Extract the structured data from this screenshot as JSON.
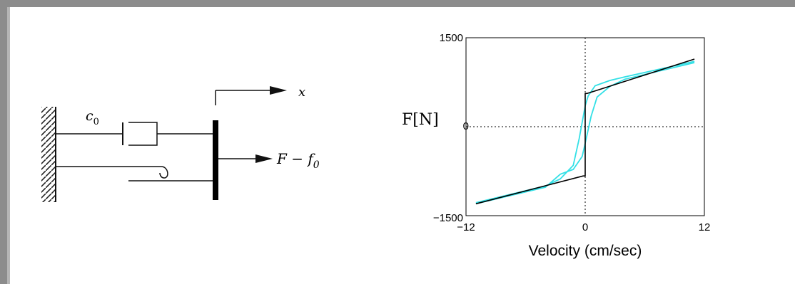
{
  "diagram": {
    "damper_label": "c",
    "damper_sub": "0",
    "displacement_label": "x",
    "force_label_main": "F − f",
    "force_label_sub": "0"
  },
  "chart_data": {
    "type": "line",
    "title": "",
    "xlabel": "Velocity (cm/sec)",
    "ylabel": "F[N]",
    "xlim": [
      -12,
      12
    ],
    "ylim": [
      -1500,
      1500
    ],
    "xticks": [
      "−12",
      "0",
      "12"
    ],
    "yticks": [
      "1500",
      "0",
      "−1500"
    ],
    "grid": "dotted zero lines",
    "series": [
      {
        "color": "#000000",
        "x": [
          -11,
          -0.2,
          -0.2,
          0,
          0,
          0.2,
          0.2,
          11
        ],
        "y": [
          -1300,
          -830,
          -830,
          -830,
          560,
          560,
          560,
          1140
        ]
      },
      {
        "color": "#33e0e6",
        "x": [
          -11,
          -4,
          -2.5,
          -1.2,
          -0.6,
          0,
          0.3,
          1,
          2.5,
          4,
          11
        ],
        "y": [
          -1280,
          -1000,
          -880,
          -650,
          -200,
          350,
          520,
          690,
          780,
          840,
          1100
        ]
      },
      {
        "color": "#33e0e6",
        "x": [
          -11,
          -4,
          -2.5,
          -1.2,
          -0.3,
          0,
          0.6,
          1.2,
          2.5,
          4,
          11
        ],
        "y": [
          -1300,
          -1020,
          -800,
          -720,
          -500,
          -280,
          180,
          500,
          680,
          800,
          1080
        ]
      }
    ]
  }
}
